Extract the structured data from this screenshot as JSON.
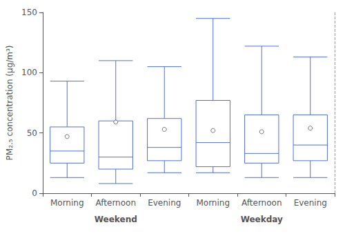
{
  "chart_data": {
    "type": "boxplot",
    "categories": [
      "Morning",
      "Afternoon",
      "Evening",
      "Morning",
      "Afternoon",
      "Evening"
    ],
    "groups": [
      "Weekend",
      "Weekday"
    ],
    "values": [
      [
        13,
        25,
        35,
        55,
        93
      ],
      [
        8,
        20,
        30,
        60,
        110
      ],
      [
        17,
        27,
        38,
        62,
        105
      ],
      [
        17,
        22,
        42,
        77,
        145
      ],
      [
        13,
        25,
        33,
        65,
        122
      ],
      [
        13,
        27,
        40,
        65,
        113
      ]
    ],
    "means": [
      47,
      59,
      53,
      52,
      51,
      54
    ],
    "ylabel": "PM₂.₅ concentration (μg/m³)",
    "ylim": [
      0,
      150
    ],
    "yticks": [
      0,
      50,
      100,
      150
    ],
    "grid": false
  }
}
